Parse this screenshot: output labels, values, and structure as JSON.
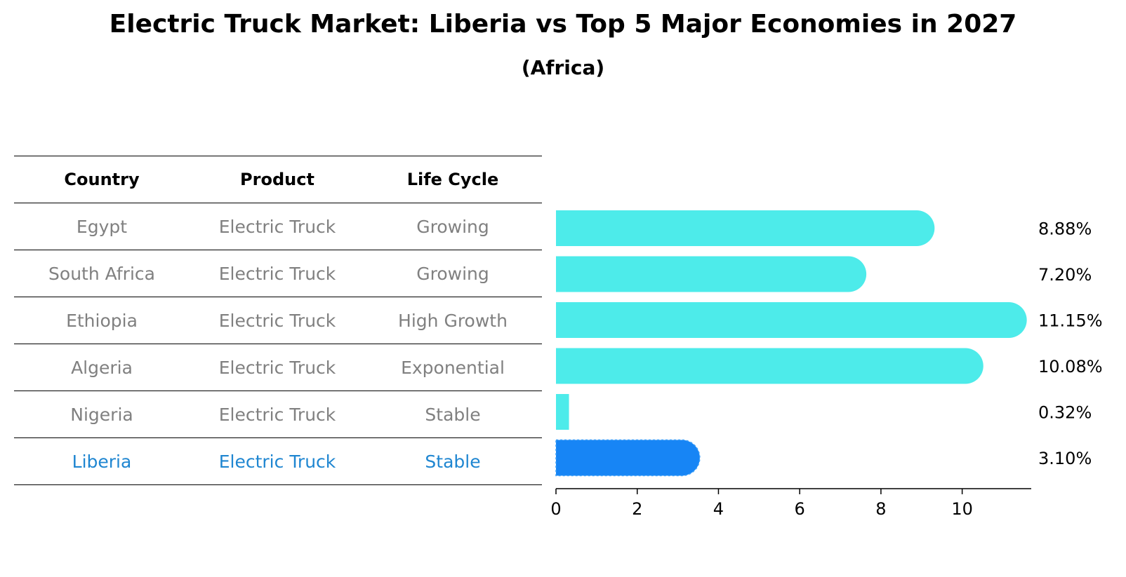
{
  "title": "Electric Truck Market: Liberia vs Top 5 Major Economies in 2027",
  "subtitle": "(Africa)",
  "table": {
    "headers": [
      "Country",
      "Product",
      "Life Cycle"
    ],
    "rows": [
      {
        "country": "Egypt",
        "product": "Electric Truck",
        "life_cycle": "Growing"
      },
      {
        "country": "South Africa",
        "product": "Electric Truck",
        "life_cycle": "Growing"
      },
      {
        "country": "Ethiopia",
        "product": "Electric Truck",
        "life_cycle": "High Growth"
      },
      {
        "country": "Algeria",
        "product": "Electric Truck",
        "life_cycle": "Exponential"
      },
      {
        "country": "Nigeria",
        "product": "Electric Truck",
        "life_cycle": "Stable"
      },
      {
        "country": "Liberia",
        "product": "Electric Truck",
        "life_cycle": "Stable"
      }
    ]
  },
  "chart_data": {
    "type": "bar",
    "orientation": "horizontal",
    "title": "Electric Truck Market: Liberia vs Top 5 Major Economies in 2027",
    "subtitle": "(Africa)",
    "categories": [
      "Egypt",
      "South Africa",
      "Ethiopia",
      "Algeria",
      "Nigeria",
      "Liberia"
    ],
    "values": [
      8.88,
      7.2,
      11.15,
      10.08,
      0.32,
      3.1
    ],
    "value_labels": [
      "8.88%",
      "7.20%",
      "11.15%",
      "10.08%",
      "0.32%",
      "3.10%"
    ],
    "highlight_category": "Liberia",
    "xlim": [
      0,
      11.7
    ],
    "xticks": [
      0,
      2,
      4,
      6,
      8,
      10
    ],
    "xlabel": "",
    "ylabel": "",
    "grid": false,
    "colors": {
      "default": "#4debea",
      "highlight": "#1785f5",
      "text": "#000000"
    }
  }
}
